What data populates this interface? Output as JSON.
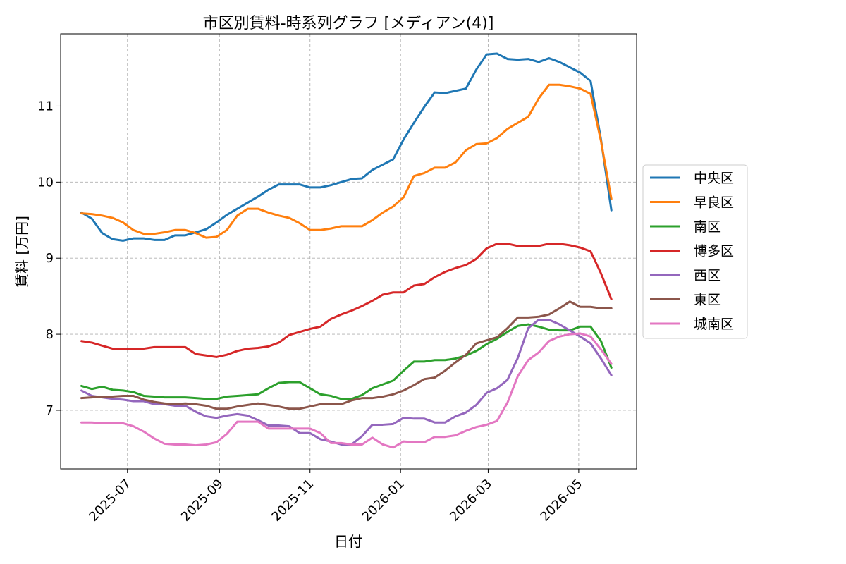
{
  "chart_data": {
    "type": "line",
    "title": "市区別賃料-時系列グラフ [メディアン(4)]",
    "xlabel": "日付",
    "ylabel": "賃料 [万円]",
    "xlim": [
      "2025-05-17",
      "2026-06-09"
    ],
    "ylim": [
      6.23,
      11.95
    ],
    "x_ticks": [
      "2025-07",
      "2025-09",
      "2025-11",
      "2026-01",
      "2026-03",
      "2026-05"
    ],
    "y_ticks": [
      7,
      8,
      9,
      10,
      11
    ],
    "grid": true,
    "legend_position": "right",
    "x": [
      "2025-05-31",
      "2025-06-07",
      "2025-06-14",
      "2025-06-21",
      "2025-06-28",
      "2025-07-05",
      "2025-07-12",
      "2025-07-19",
      "2025-07-26",
      "2025-08-02",
      "2025-08-09",
      "2025-08-16",
      "2025-08-23",
      "2025-08-30",
      "2025-09-06",
      "2025-09-13",
      "2025-09-20",
      "2025-09-27",
      "2025-10-04",
      "2025-10-11",
      "2025-10-18",
      "2025-10-25",
      "2025-11-01",
      "2025-11-08",
      "2025-11-15",
      "2025-11-22",
      "2025-11-29",
      "2025-12-06",
      "2025-12-13",
      "2025-12-20",
      "2025-12-27",
      "2026-01-03",
      "2026-01-10",
      "2026-01-17",
      "2026-01-24",
      "2026-01-31",
      "2026-02-07",
      "2026-02-14",
      "2026-02-21",
      "2026-02-28",
      "2026-03-07",
      "2026-03-14",
      "2026-03-21",
      "2026-03-28",
      "2026-04-04",
      "2026-04-11",
      "2026-04-18",
      "2026-04-25",
      "2026-05-02",
      "2026-05-09",
      "2026-05-16",
      "2026-05-23"
    ],
    "series": [
      {
        "name": "中央区",
        "color": "#1f77b4",
        "values": [
          9.6,
          9.52,
          9.33,
          9.25,
          9.23,
          9.26,
          9.26,
          9.24,
          9.24,
          9.3,
          9.3,
          9.34,
          9.38,
          9.47,
          9.57,
          9.65,
          9.73,
          9.81,
          9.9,
          9.97,
          9.97,
          9.97,
          9.93,
          9.93,
          9.96,
          10.0,
          10.04,
          10.05,
          10.16,
          10.23,
          10.3,
          10.56,
          10.78,
          10.99,
          11.18,
          11.17,
          11.2,
          11.23,
          11.48,
          11.68,
          11.69,
          11.62,
          11.61,
          11.62,
          11.58,
          11.63,
          11.58,
          11.51,
          11.44,
          11.33,
          10.56,
          9.63
        ]
      },
      {
        "name": "早良区",
        "color": "#ff7f0e",
        "values": [
          9.59,
          9.58,
          9.56,
          9.53,
          9.47,
          9.37,
          9.32,
          9.32,
          9.34,
          9.37,
          9.37,
          9.33,
          9.27,
          9.28,
          9.37,
          9.56,
          9.65,
          9.65,
          9.6,
          9.56,
          9.53,
          9.46,
          9.37,
          9.37,
          9.39,
          9.42,
          9.42,
          9.42,
          9.5,
          9.6,
          9.68,
          9.8,
          10.08,
          10.12,
          10.19,
          10.19,
          10.26,
          10.42,
          10.5,
          10.51,
          10.58,
          10.7,
          10.78,
          10.86,
          11.1,
          11.28,
          11.28,
          11.26,
          11.23,
          11.16,
          10.54,
          9.78
        ]
      },
      {
        "name": "南区",
        "color": "#2ca02c",
        "values": [
          7.32,
          7.28,
          7.31,
          7.27,
          7.26,
          7.24,
          7.19,
          7.18,
          7.17,
          7.17,
          7.17,
          7.16,
          7.15,
          7.15,
          7.18,
          7.19,
          7.2,
          7.21,
          7.29,
          7.36,
          7.37,
          7.37,
          7.29,
          7.21,
          7.19,
          7.15,
          7.15,
          7.2,
          7.29,
          7.34,
          7.39,
          7.52,
          7.64,
          7.64,
          7.66,
          7.66,
          7.68,
          7.72,
          7.78,
          7.87,
          7.94,
          8.03,
          8.11,
          8.13,
          8.1,
          8.06,
          8.05,
          8.05,
          8.1,
          8.1,
          7.91,
          7.56
        ]
      },
      {
        "name": "博多区",
        "color": "#d62728",
        "values": [
          7.91,
          7.89,
          7.85,
          7.81,
          7.81,
          7.81,
          7.81,
          7.83,
          7.83,
          7.83,
          7.83,
          7.74,
          7.72,
          7.7,
          7.73,
          7.78,
          7.81,
          7.82,
          7.84,
          7.89,
          7.99,
          8.03,
          8.07,
          8.1,
          8.2,
          8.26,
          8.31,
          8.37,
          8.44,
          8.52,
          8.55,
          8.55,
          8.64,
          8.66,
          8.75,
          8.82,
          8.87,
          8.91,
          8.99,
          9.13,
          9.19,
          9.19,
          9.16,
          9.16,
          9.16,
          9.19,
          9.19,
          9.17,
          9.14,
          9.09,
          8.8,
          8.46
        ]
      },
      {
        "name": "西区",
        "color": "#9467bd",
        "values": [
          7.26,
          7.19,
          7.17,
          7.15,
          7.14,
          7.12,
          7.12,
          7.08,
          7.08,
          7.06,
          7.06,
          6.98,
          6.92,
          6.9,
          6.93,
          6.95,
          6.93,
          6.87,
          6.8,
          6.8,
          6.79,
          6.7,
          6.7,
          6.62,
          6.59,
          6.55,
          6.55,
          6.66,
          6.81,
          6.81,
          6.82,
          6.9,
          6.89,
          6.89,
          6.84,
          6.84,
          6.92,
          6.97,
          7.07,
          7.23,
          7.29,
          7.4,
          7.69,
          8.08,
          8.19,
          8.19,
          8.13,
          8.05,
          7.97,
          7.88,
          7.68,
          7.46
        ]
      },
      {
        "name": "東区",
        "color": "#8c564b",
        "values": [
          7.16,
          7.17,
          7.18,
          7.18,
          7.19,
          7.19,
          7.14,
          7.11,
          7.09,
          7.08,
          7.09,
          7.08,
          7.06,
          7.02,
          7.02,
          7.05,
          7.07,
          7.09,
          7.07,
          7.05,
          7.02,
          7.02,
          7.05,
          7.08,
          7.08,
          7.08,
          7.13,
          7.16,
          7.16,
          7.18,
          7.21,
          7.26,
          7.33,
          7.41,
          7.43,
          7.52,
          7.63,
          7.73,
          7.88,
          7.92,
          7.96,
          8.08,
          8.22,
          8.22,
          8.23,
          8.26,
          8.34,
          8.43,
          8.36,
          8.36,
          8.34,
          8.34
        ]
      },
      {
        "name": "城南区",
        "color": "#e377c2",
        "values": [
          6.84,
          6.84,
          6.83,
          6.83,
          6.83,
          6.79,
          6.72,
          6.63,
          6.56,
          6.55,
          6.55,
          6.54,
          6.55,
          6.58,
          6.69,
          6.85,
          6.85,
          6.85,
          6.76,
          6.76,
          6.76,
          6.76,
          6.76,
          6.7,
          6.57,
          6.57,
          6.55,
          6.55,
          6.64,
          6.55,
          6.51,
          6.59,
          6.58,
          6.58,
          6.65,
          6.65,
          6.67,
          6.73,
          6.78,
          6.81,
          6.86,
          7.1,
          7.45,
          7.66,
          7.76,
          7.91,
          7.97,
          8.0,
          8.01,
          7.97,
          7.8,
          7.61
        ]
      }
    ]
  }
}
